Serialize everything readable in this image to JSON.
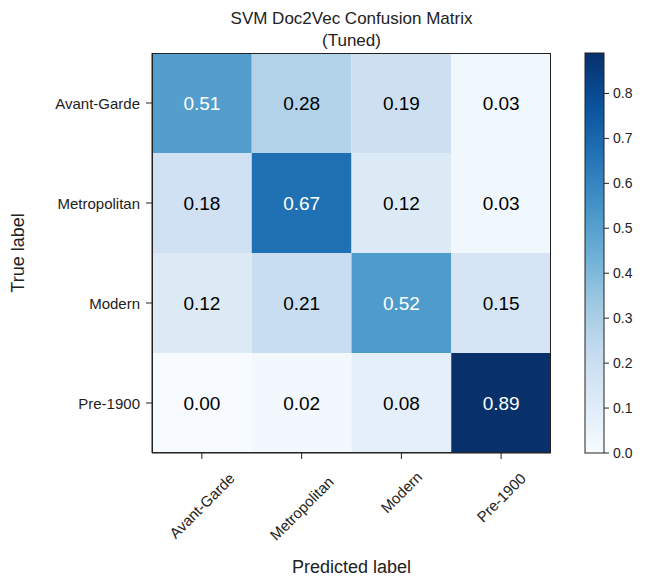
{
  "chart_data": {
    "type": "heatmap",
    "title": "SVM Doc2Vec Confusion Matrix",
    "subtitle": "(Tuned)",
    "x_label": "Predicted label",
    "y_label": "True label",
    "x_categories": [
      "Avant-Garde",
      "Metropolitan",
      "Modern",
      "Pre-1900"
    ],
    "y_categories": [
      "Avant-Garde",
      "Metropolitan",
      "Modern",
      "Pre-1900"
    ],
    "values": [
      [
        0.51,
        0.28,
        0.19,
        0.03
      ],
      [
        0.18,
        0.67,
        0.12,
        0.03
      ],
      [
        0.12,
        0.21,
        0.52,
        0.15
      ],
      [
        0.0,
        0.02,
        0.08,
        0.89
      ]
    ],
    "value_labels": [
      [
        "0.51",
        "0.28",
        "0.19",
        "0.03"
      ],
      [
        "0.18",
        "0.67",
        "0.12",
        "0.03"
      ],
      [
        "0.12",
        "0.21",
        "0.52",
        "0.15"
      ],
      [
        "0.00",
        "0.02",
        "0.08",
        "0.89"
      ]
    ],
    "data_labels": true,
    "colorbar_range": [
      0,
      0.89
    ],
    "colorbar_ticks": [
      {
        "value": 0,
        "label": "0.0"
      },
      {
        "value": 0.1,
        "label": "0.1"
      },
      {
        "value": 0.2,
        "label": "0.2"
      },
      {
        "value": 0.3,
        "label": "0.3"
      },
      {
        "value": 0.4,
        "label": "0.4"
      },
      {
        "value": 0.5,
        "label": "0.5"
      },
      {
        "value": 0.6,
        "label": "0.6"
      },
      {
        "value": 0.7,
        "label": "0.7"
      },
      {
        "value": 0.8,
        "label": "0.8"
      }
    ]
  }
}
